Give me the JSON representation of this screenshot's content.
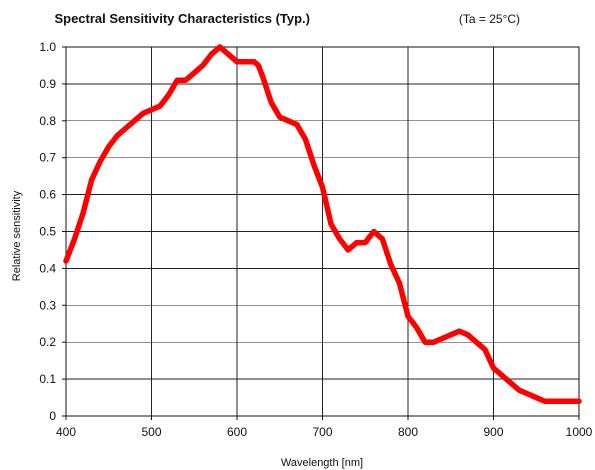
{
  "chart_data": {
    "type": "line",
    "title": "Spectral Sensitivity Characteristics (Typ.)",
    "subtitle": "(Ta = 25°C)",
    "xlabel": "Wavelength [nm]",
    "ylabel": "Relative sensitivity",
    "xlim": [
      400,
      1000
    ],
    "ylim": [
      0,
      1.0
    ],
    "x_ticks": [
      "400",
      "500",
      "600",
      "700",
      "800",
      "900",
      "1000"
    ],
    "y_ticks": [
      "0",
      "0.1",
      "0.2",
      "0.3",
      "0.4",
      "0.5",
      "0.6",
      "0.7",
      "0.8",
      "0.9",
      "1.0"
    ],
    "grid": true,
    "series": [
      {
        "color": "#ff0000",
        "x": [
          400,
          410,
          420,
          430,
          440,
          450,
          460,
          470,
          480,
          490,
          500,
          510,
          520,
          530,
          540,
          550,
          560,
          570,
          580,
          585,
          590,
          600,
          610,
          620,
          625,
          630,
          640,
          650,
          660,
          670,
          680,
          690,
          700,
          710,
          720,
          730,
          740,
          750,
          760,
          770,
          780,
          790,
          800,
          810,
          820,
          830,
          840,
          850,
          860,
          870,
          880,
          890,
          900,
          910,
          920,
          930,
          940,
          950,
          960,
          970,
          980,
          990,
          1000
        ],
        "y": [
          0.42,
          0.48,
          0.55,
          0.64,
          0.69,
          0.73,
          0.76,
          0.78,
          0.8,
          0.82,
          0.83,
          0.84,
          0.87,
          0.91,
          0.91,
          0.93,
          0.95,
          0.98,
          1.0,
          0.99,
          0.98,
          0.96,
          0.96,
          0.96,
          0.95,
          0.92,
          0.85,
          0.81,
          0.8,
          0.79,
          0.75,
          0.68,
          0.62,
          0.52,
          0.48,
          0.45,
          0.47,
          0.47,
          0.5,
          0.48,
          0.41,
          0.36,
          0.27,
          0.24,
          0.2,
          0.2,
          0.21,
          0.22,
          0.23,
          0.22,
          0.2,
          0.18,
          0.13,
          0.11,
          0.09,
          0.07,
          0.06,
          0.05,
          0.04,
          0.04,
          0.04,
          0.04,
          0.04
        ]
      }
    ]
  }
}
